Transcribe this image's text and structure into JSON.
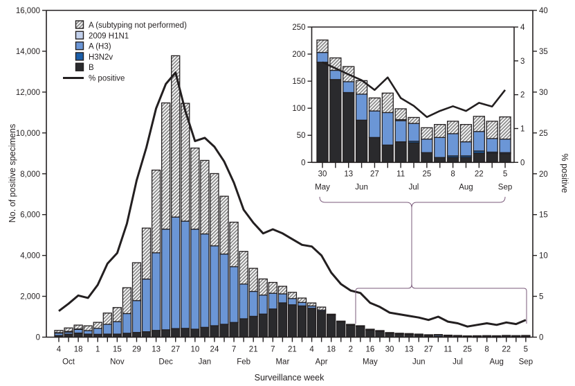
{
  "chart_data": [
    {
      "type": "bar",
      "stacked": true,
      "xlabel": "Surveillance week",
      "ylabel": "No. of positive specimens",
      "y2label": "% positive",
      "ylim": [
        0,
        16000
      ],
      "y2lim": [
        0,
        40
      ],
      "y_ticks": [
        "0",
        "2,000",
        "4,000",
        "6,000",
        "8,000",
        "10,000",
        "12,000",
        "14,000",
        "16,000"
      ],
      "y2_ticks": [
        "0",
        "5",
        "10",
        "15",
        "20",
        "25",
        "30",
        "35",
        "40"
      ],
      "x_tick_labels": [
        "4",
        "18",
        "1",
        "15",
        "29",
        "13",
        "27",
        "10",
        "24",
        "7",
        "21",
        "7",
        "21",
        "4",
        "18",
        "2",
        "16",
        "30",
        "13",
        "27",
        "11",
        "25",
        "8",
        "22",
        "5"
      ],
      "month_labels": [
        "Oct",
        "Nov",
        "Dec",
        "Jan",
        "Feb",
        "Mar",
        "Apr",
        "May",
        "Jun",
        "Jul",
        "Aug",
        "Sep"
      ],
      "categories": [
        "Oct 4",
        "Oct 11",
        "Oct 18",
        "Oct 25",
        "Nov 1",
        "Nov 8",
        "Nov 15",
        "Nov 22",
        "Nov 29",
        "Dec 6",
        "Dec 13",
        "Dec 20",
        "Dec 27",
        "Jan 3",
        "Jan 10",
        "Jan 17",
        "Jan 24",
        "Jan 31",
        "Feb 7",
        "Feb 14",
        "Feb 21",
        "Feb 28",
        "Mar 7",
        "Mar 14",
        "Mar 21",
        "Mar 28",
        "Apr 4",
        "Apr 11",
        "Apr 18",
        "Apr 25",
        "May 2",
        "May 9",
        "May 16",
        "May 23",
        "May 30",
        "Jun 6",
        "Jun 13",
        "Jun 20",
        "Jun 27",
        "Jul 4",
        "Jul 11",
        "Jul 18",
        "Jul 25",
        "Aug 1",
        "Aug 8",
        "Aug 15",
        "Aug 22",
        "Aug 29",
        "Sep 5"
      ],
      "legend_placement": "top-left",
      "series": [
        {
          "name": "B",
          "color": "#2a2a2d",
          "values": [
            80,
            150,
            200,
            150,
            140,
            150,
            150,
            190,
            230,
            265,
            330,
            360,
            420,
            430,
            390,
            480,
            560,
            630,
            720,
            900,
            1020,
            1130,
            1380,
            1680,
            1585,
            1530,
            1415,
            1270,
            1090,
            750,
            590,
            520,
            350,
            285,
            185,
            153,
            129,
            78,
            46,
            32,
            38,
            36,
            18,
            9,
            9,
            9,
            17,
            17,
            16
          ]
        },
        {
          "name": "H3N2v",
          "color": "#1a5ea8",
          "values": [
            0,
            0,
            0,
            0,
            0,
            0,
            0,
            0,
            0,
            0,
            0,
            0,
            0,
            0,
            0,
            0,
            0,
            0,
            0,
            0,
            0,
            0,
            0,
            0,
            0,
            0,
            0,
            0,
            0,
            0,
            0,
            0,
            0,
            0,
            0,
            0,
            0,
            0,
            0,
            0,
            0,
            3,
            0,
            0,
            3,
            3,
            4,
            2,
            2
          ]
        },
        {
          "name": "A (H3)",
          "color": "#6b96d6",
          "values": [
            120,
            100,
            180,
            170,
            290,
            480,
            610,
            965,
            1560,
            2580,
            3800,
            4930,
            5460,
            5250,
            4900,
            4575,
            3910,
            3440,
            2730,
            1700,
            1220,
            930,
            770,
            440,
            305,
            170,
            113,
            55,
            10,
            12,
            13,
            15,
            17,
            17,
            18,
            17,
            20,
            48,
            49,
            60,
            39,
            33,
            25,
            37,
            41,
            26,
            36,
            25,
            25
          ]
        },
        {
          "name": "2009 H1N1",
          "color": "#c3d1ec",
          "values": [
            20,
            30,
            20,
            0,
            0,
            0,
            0,
            0,
            0,
            0,
            0,
            0,
            0,
            0,
            0,
            0,
            0,
            0,
            0,
            0,
            0,
            0,
            0,
            0,
            0,
            0,
            0,
            0,
            0,
            0,
            0,
            0,
            0,
            0,
            0,
            0,
            0,
            0,
            0,
            0,
            2,
            0,
            0,
            0,
            0,
            0,
            0,
            0,
            0
          ]
        },
        {
          "name": "A (subtyping not performed)",
          "color": "hatch",
          "values": [
            110,
            170,
            190,
            235,
            295,
            550,
            690,
            1265,
            1855,
            2495,
            4050,
            6180,
            7900,
            5770,
            3970,
            3600,
            3540,
            2830,
            2180,
            1600,
            1130,
            790,
            530,
            370,
            305,
            215,
            147,
            147,
            26,
            25,
            25,
            25,
            23,
            21,
            23,
            23,
            28,
            25,
            24,
            36,
            20,
            11,
            21,
            24,
            23,
            32,
            28,
            32,
            41
          ]
        }
      ],
      "line": {
        "name": "% positive",
        "color": "#231f20",
        "axis": "right",
        "values": [
          3.2,
          4.1,
          5.1,
          4.8,
          6.4,
          9.0,
          10.3,
          13.9,
          19.2,
          23.2,
          28.0,
          31.0,
          32.4,
          27.7,
          24.0,
          24.4,
          23.3,
          21.5,
          18.9,
          15.6,
          14.0,
          12.7,
          13.2,
          12.7,
          12.0,
          11.3,
          11.1,
          10.0,
          7.9,
          6.5,
          5.7,
          5.4,
          4.2,
          3.7,
          3.0,
          2.8,
          2.6,
          2.4,
          2.1,
          2.5,
          1.9,
          1.7,
          1.3,
          1.5,
          1.7,
          1.5,
          1.8,
          1.6,
          2.1
        ]
      }
    },
    {
      "type": "bar",
      "stacked": true,
      "ylim": [
        0,
        250
      ],
      "y2lim": [
        0,
        4
      ],
      "y_ticks": [
        "0",
        "50",
        "100",
        "150",
        "200",
        "250"
      ],
      "y2_ticks": [
        "0",
        "1",
        "2",
        "3",
        "4"
      ],
      "x_tick_labels": [
        "30",
        "13",
        "27",
        "11",
        "25",
        "8",
        "22",
        "5"
      ],
      "month_labels": [
        "May",
        "Jun",
        "Jul",
        "Aug",
        "Sep"
      ],
      "categories": [
        "May 30",
        "Jun 6",
        "Jun 13",
        "Jun 20",
        "Jun 27",
        "Jul 4",
        "Jul 11",
        "Jul 18",
        "Jul 25",
        "Aug 1",
        "Aug 8",
        "Aug 15",
        "Aug 22",
        "Aug 29",
        "Sep 5"
      ],
      "series": [
        {
          "name": "B",
          "values": [
            185,
            153,
            129,
            78,
            46,
            32,
            38,
            36,
            18,
            9,
            9,
            9,
            17,
            17,
            16
          ]
        },
        {
          "name": "H3N2v",
          "values": [
            0,
            0,
            0,
            0,
            0,
            0,
            0,
            3,
            0,
            0,
            3,
            3,
            4,
            2,
            2
          ]
        },
        {
          "name": "A (H3)",
          "values": [
            18,
            17,
            20,
            48,
            49,
            60,
            39,
            33,
            25,
            37,
            41,
            26,
            36,
            25,
            25
          ]
        },
        {
          "name": "2009 H1N1",
          "values": [
            0,
            0,
            0,
            0,
            0,
            0,
            2,
            0,
            0,
            0,
            0,
            0,
            0,
            0,
            0
          ]
        },
        {
          "name": "A (subtyping not performed)",
          "values": [
            23,
            23,
            28,
            25,
            24,
            36,
            20,
            11,
            21,
            24,
            23,
            32,
            28,
            32,
            41
          ]
        }
      ],
      "line": {
        "name": "% positive",
        "values": [
          2.96,
          2.78,
          2.6,
          2.43,
          2.14,
          2.51,
          1.9,
          1.67,
          1.34,
          1.52,
          1.66,
          1.52,
          1.76,
          1.65,
          2.14
        ]
      }
    }
  ],
  "legend": {
    "items": [
      {
        "label": "A (subtyping not performed)",
        "swatch": "hatch"
      },
      {
        "label": "2009 H1N1",
        "swatch": "#c3d1ec"
      },
      {
        "label": "A (H3)",
        "swatch": "#6b96d6"
      },
      {
        "label": "H3N2v",
        "swatch": "#1a5ea8"
      },
      {
        "label": "B",
        "swatch": "#2a2a2d"
      },
      {
        "label": "% positive",
        "swatch": "line"
      }
    ]
  }
}
